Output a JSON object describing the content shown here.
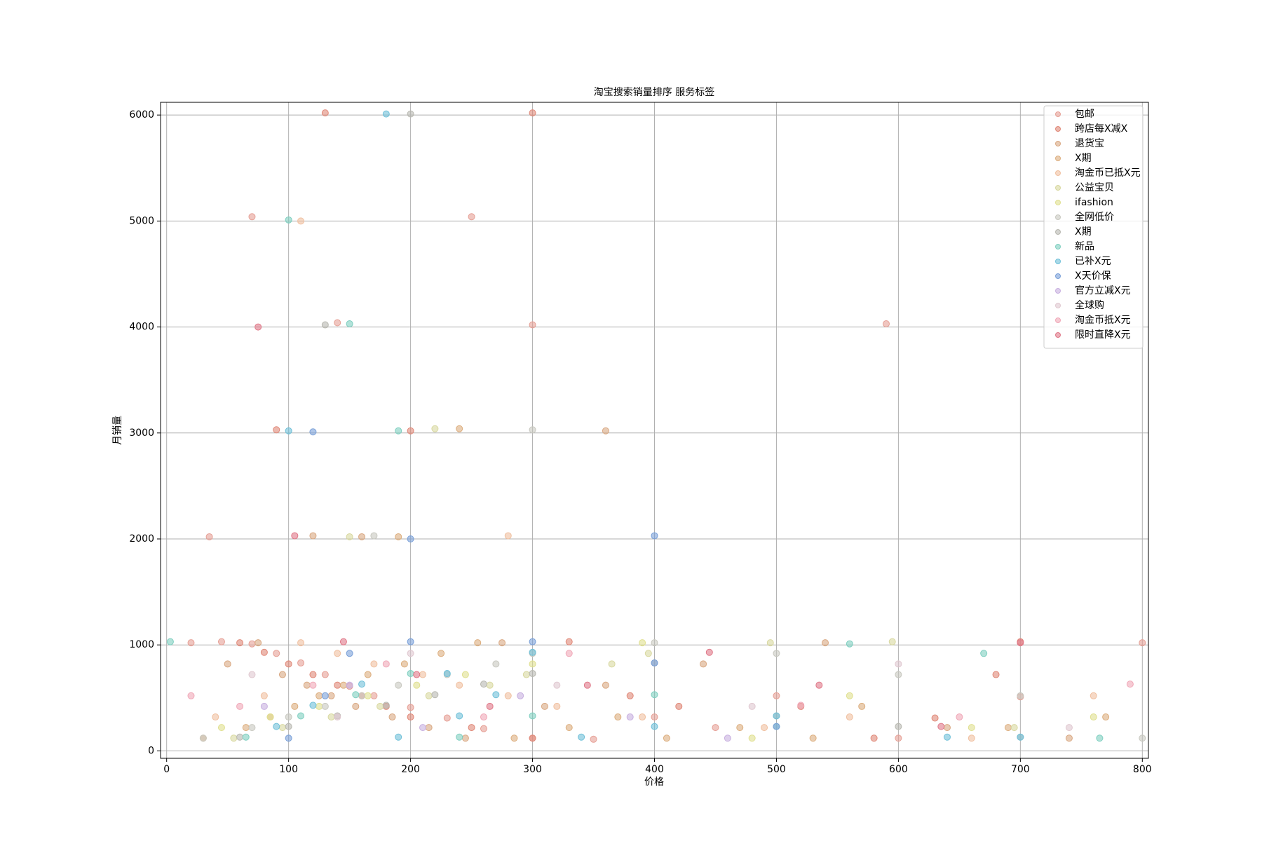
{
  "chart_data": {
    "type": "scatter",
    "title": "淘宝搜索销量排序 服务标签",
    "x_label": "价格",
    "y_label": "月销量",
    "xlim": [
      -5,
      805
    ],
    "ylim": [
      -70,
      6120
    ],
    "xticks": [
      0,
      100,
      200,
      300,
      400,
      500,
      600,
      700,
      800
    ],
    "yticks": [
      0,
      1000,
      2000,
      3000,
      4000,
      5000,
      6000
    ],
    "grid": true,
    "legend": "upper right",
    "series": [
      {
        "name": "包邮",
        "color": "#e6a096",
        "x": [
          20,
          45,
          70,
          90,
          110,
          130,
          150,
          170,
          200,
          230,
          260,
          300,
          350,
          400,
          450,
          500,
          600,
          700,
          800,
          70,
          140,
          250,
          300,
          590,
          35
        ],
        "values": [
          1020,
          1030,
          1010,
          920,
          830,
          720,
          610,
          520,
          410,
          310,
          210,
          120,
          110,
          320,
          220,
          520,
          120,
          510,
          1020,
          5040,
          4040,
          5040,
          4020,
          4030,
          2020
        ]
      },
      {
        "name": "跨店每X减X",
        "color": "#e08878",
        "x": [
          60,
          80,
          100,
          120,
          140,
          160,
          180,
          200,
          250,
          300,
          330,
          380,
          420,
          520,
          580,
          630,
          680,
          700,
          90,
          130,
          200,
          300
        ],
        "values": [
          1020,
          930,
          820,
          720,
          620,
          520,
          420,
          320,
          220,
          120,
          1030,
          520,
          420,
          420,
          120,
          310,
          720,
          1030,
          3030,
          6020,
          3020,
          6020
        ]
      },
      {
        "name": "退货宝",
        "color": "#d9a882",
        "x": [
          50,
          75,
          95,
          115,
          135,
          155,
          185,
          215,
          245,
          275,
          310,
          360,
          440,
          540,
          640,
          740,
          120,
          160,
          360
        ],
        "values": [
          820,
          1020,
          720,
          620,
          520,
          420,
          320,
          220,
          120,
          1020,
          420,
          620,
          820,
          1020,
          220,
          120,
          2030,
          2020,
          3020
        ]
      },
      {
        "name": " X期",
        "color": "#dcae7e",
        "x": [
          30,
          65,
          85,
          105,
          125,
          145,
          165,
          195,
          225,
          255,
          285,
          330,
          370,
          410,
          470,
          530,
          570,
          690,
          770,
          190,
          240
        ],
        "values": [
          120,
          220,
          320,
          420,
          520,
          620,
          720,
          820,
          920,
          1020,
          120,
          220,
          320,
          120,
          220,
          120,
          420,
          220,
          320,
          2020,
          3040
        ]
      },
      {
        "name": "淘金币已抵X元",
        "color": "#f0c0a0",
        "x": [
          40,
          80,
          110,
          140,
          170,
          210,
          240,
          280,
          320,
          390,
          490,
          560,
          660,
          760,
          110,
          280
        ],
        "values": [
          320,
          520,
          1020,
          920,
          820,
          720,
          620,
          520,
          420,
          320,
          220,
          320,
          120,
          520,
          5000,
          2030
        ]
      },
      {
        "name": "公益宝贝",
        "color": "#d8d8a0",
        "x": [
          55,
          95,
          135,
          175,
          215,
          265,
          295,
          365,
          395,
          495,
          595,
          695,
          150,
          220
        ],
        "values": [
          120,
          220,
          320,
          420,
          520,
          620,
          720,
          820,
          920,
          1020,
          1030,
          220,
          2020,
          3040
        ]
      },
      {
        "name": "ifashion",
        "color": "#e0e090",
        "x": [
          45,
          85,
          125,
          165,
          205,
          245,
          300,
          390,
          480,
          560,
          660,
          760
        ],
        "values": [
          220,
          320,
          420,
          520,
          620,
          720,
          820,
          1020,
          120,
          520,
          220,
          320
        ]
      },
      {
        "name": "全网低价",
        "color": "#c8c8c0",
        "x": [
          30,
          70,
          100,
          130,
          160,
          190,
          230,
          270,
          300,
          400,
          500,
          600,
          700,
          800,
          170,
          300
        ],
        "values": [
          120,
          220,
          320,
          420,
          520,
          620,
          720,
          820,
          920,
          1020,
          920,
          720,
          520,
          120,
          2030,
          3030
        ]
      },
      {
        "name": "X期",
        "color": "#b8b8b0",
        "x": [
          60,
          100,
          140,
          180,
          220,
          260,
          300,
          400,
          500,
          600,
          700,
          130,
          200
        ],
        "values": [
          130,
          230,
          330,
          430,
          530,
          630,
          730,
          830,
          330,
          230,
          130,
          4020,
          6010
        ]
      },
      {
        "name": "新品",
        "color": "#7fcfc0",
        "x": [
          3,
          65,
          110,
          155,
          200,
          240,
          300,
          400,
          500,
          560,
          670,
          765,
          100,
          150,
          190
        ],
        "values": [
          1030,
          130,
          330,
          530,
          730,
          130,
          330,
          530,
          230,
          1010,
          920,
          120,
          5010,
          4030,
          3020
        ]
      },
      {
        "name": "已补X元",
        "color": "#6fc0d8",
        "x": [
          90,
          120,
          160,
          190,
          240,
          270,
          300,
          340,
          400,
          500,
          640,
          700,
          100,
          180,
          230
        ],
        "values": [
          230,
          430,
          630,
          130,
          330,
          530,
          930,
          130,
          230,
          330,
          130,
          130,
          3020,
          6010,
          730
        ]
      },
      {
        "name": "X天价保",
        "color": "#7aa0d8",
        "x": [
          100,
          130,
          150,
          200,
          300,
          400,
          500,
          120,
          200,
          400
        ],
        "values": [
          120,
          520,
          920,
          1030,
          1030,
          830,
          230,
          3010,
          2000,
          2030
        ]
      },
      {
        "name": "官方立减X元",
        "color": "#c8b0e0",
        "x": [
          80,
          150,
          210,
          290,
          380,
          460
        ],
        "values": [
          420,
          620,
          220,
          520,
          320,
          120
        ]
      },
      {
        "name": "全球购",
        "color": "#e0c8d0",
        "x": [
          70,
          140,
          200,
          320,
          480,
          600,
          740
        ],
        "values": [
          720,
          320,
          920,
          620,
          420,
          820,
          220
        ]
      },
      {
        "name": "淘金币抵X元",
        "color": "#f0a8b8",
        "x": [
          20,
          60,
          120,
          180,
          260,
          330,
          520,
          650,
          790
        ],
        "values": [
          520,
          420,
          620,
          820,
          320,
          920,
          430,
          320,
          630
        ]
      },
      {
        "name": "限时直降X元",
        "color": "#e07888",
        "x": [
          75,
          105,
          145,
          205,
          265,
          345,
          445,
          535,
          635,
          700
        ],
        "values": [
          4000,
          2030,
          1030,
          720,
          420,
          620,
          930,
          620,
          230,
          1020
        ]
      }
    ]
  }
}
